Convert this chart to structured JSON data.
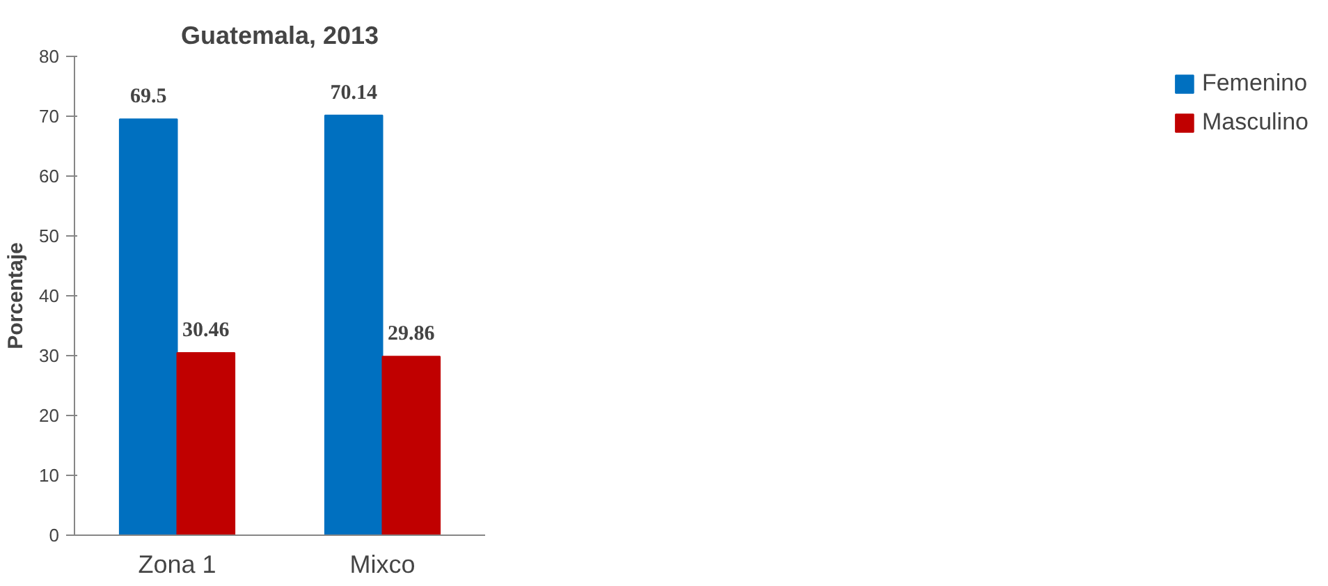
{
  "chart_data": {
    "type": "bar",
    "title": "Guatemala, 2013",
    "ylabel": "Porcentaje",
    "categories": [
      "Zona 1",
      "Mixco"
    ],
    "series": [
      {
        "name": "Femenino",
        "color": "#0070c0",
        "values": [
          69.5,
          70.14
        ]
      },
      {
        "name": "Masculino",
        "color": "#c00000",
        "values": [
          30.46,
          29.86
        ]
      }
    ],
    "ylim": [
      0,
      80
    ],
    "yticks": [
      0,
      10,
      20,
      30,
      40,
      50,
      60,
      70,
      80
    ],
    "data_labels": true,
    "legend": "right",
    "grid": false
  }
}
